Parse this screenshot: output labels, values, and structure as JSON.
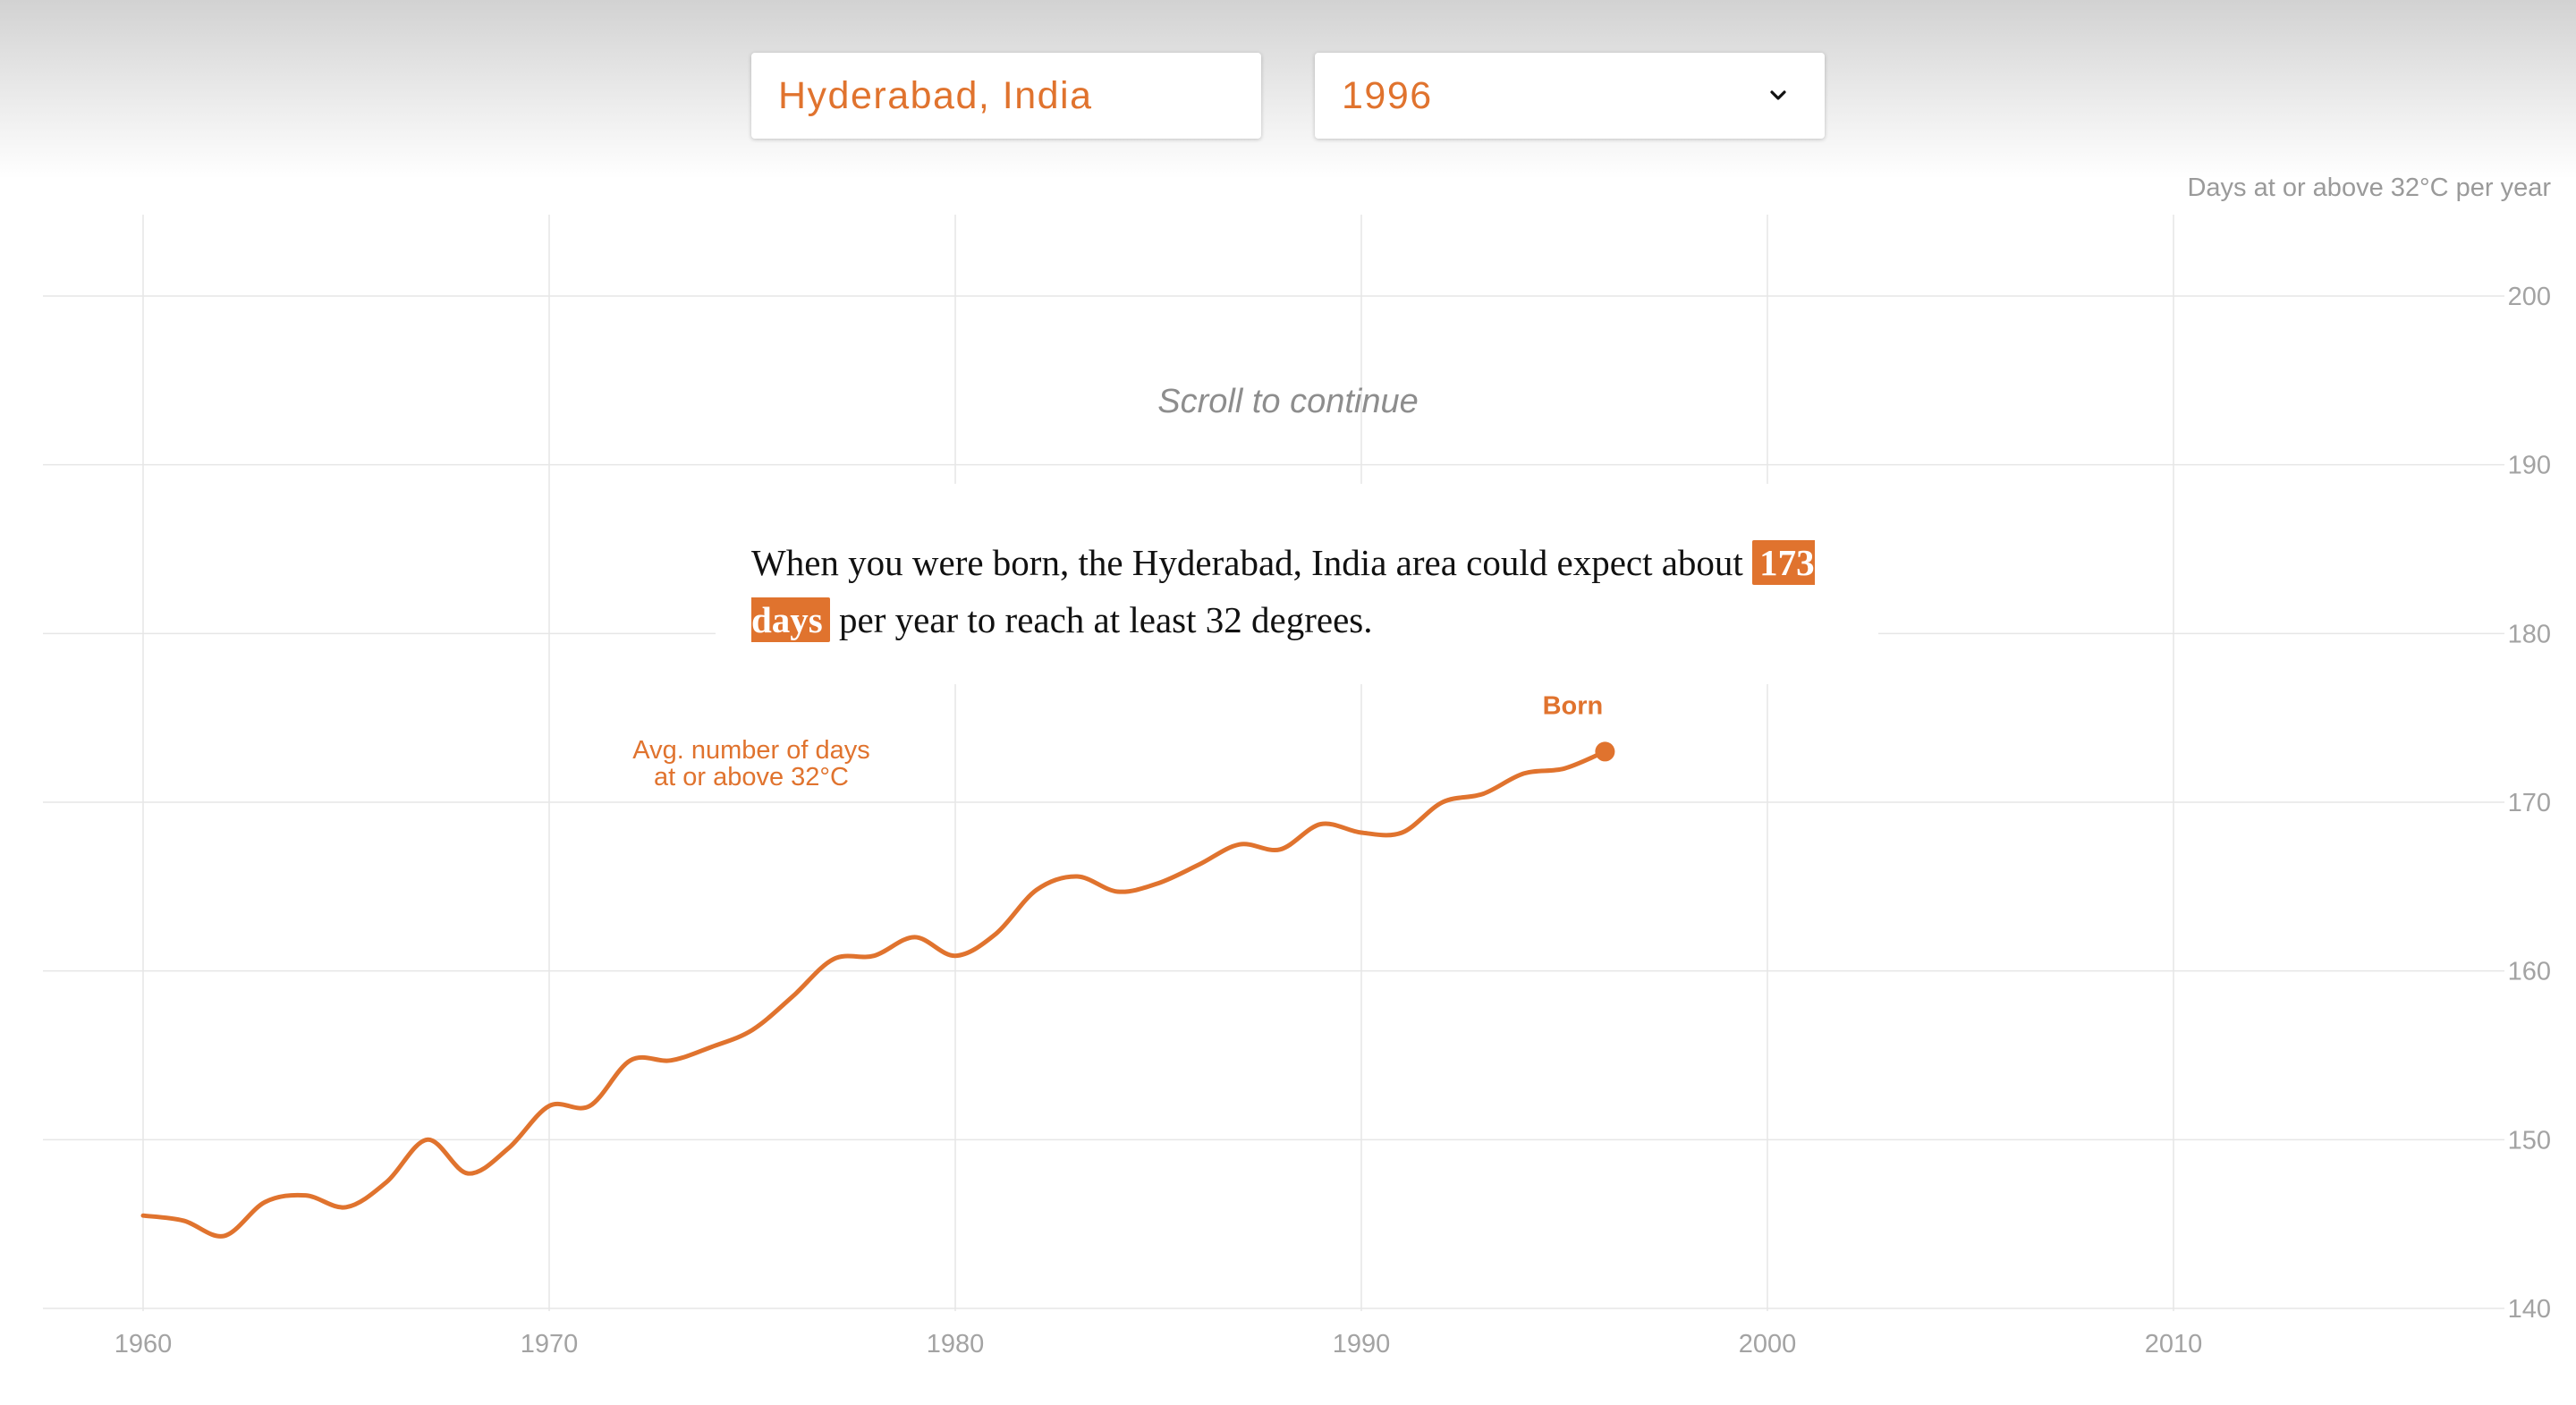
{
  "controls": {
    "location": "Hyderabad, India",
    "year": "1996",
    "dropdown_icon": "chevron-down-icon"
  },
  "scroll_hint": "Scroll to continue",
  "narrative": {
    "before_city": "When you were born, the ",
    "city": "Hyderabad, India",
    "after_city": " area could expect about ",
    "highlight": "173 days",
    "after_highlight": " per year to reach at least 32 degrees."
  },
  "colors": {
    "accent": "#e0732e",
    "grid": "#e6e6e6",
    "tick_text": "#a3a3a3"
  },
  "chart_data": {
    "type": "line",
    "ylabel": "Days at or above 32°C per year",
    "xlim": [
      1957.5,
      2018.8
    ],
    "ylim": [
      140,
      200
    ],
    "x_ticks": [
      1960,
      1970,
      1980,
      1990,
      2000,
      2010
    ],
    "y_ticks": [
      140,
      150,
      160,
      170,
      180,
      190,
      200
    ],
    "y_axis_position": "right",
    "grid": true,
    "series": [
      {
        "line_label": [
          "Avg. number of days",
          "at or above 32°C"
        ],
        "x": [
          1960,
          1961,
          1962,
          1963,
          1964,
          1965,
          1966,
          1967,
          1968,
          1969,
          1970,
          1971,
          1972,
          1973,
          1974,
          1975,
          1976,
          1977,
          1978,
          1979,
          1980,
          1981,
          1982,
          1983,
          1984,
          1985,
          1986,
          1987,
          1988,
          1989,
          1990,
          1991,
          1992,
          1993,
          1994,
          1995,
          1996
        ],
        "y": [
          145.5,
          145.2,
          144.3,
          146.3,
          146.7,
          146.0,
          147.5,
          150.0,
          148.0,
          149.5,
          152.0,
          152.0,
          154.7,
          154.7,
          155.5,
          156.5,
          158.5,
          160.7,
          160.9,
          162.0,
          160.9,
          162.2,
          164.8,
          165.6,
          164.7,
          165.2,
          166.3,
          167.5,
          167.2,
          168.7,
          168.2,
          168.2,
          170.0,
          170.5,
          171.7,
          172.0,
          173.0
        ]
      }
    ],
    "annotation": {
      "x": 1996,
      "y": 173,
      "year_label": "1996",
      "label": "Born"
    }
  }
}
